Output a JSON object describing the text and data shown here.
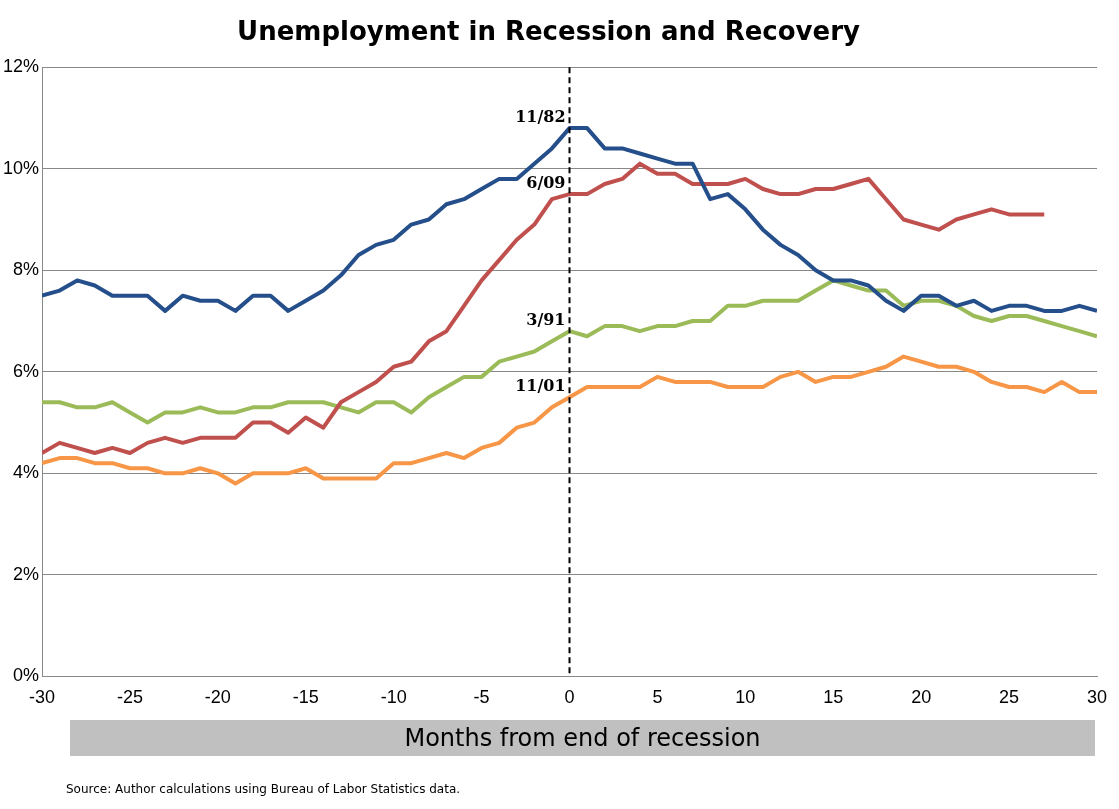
{
  "chart_data": {
    "type": "line",
    "title": "Unemployment in Recession and Recovery",
    "xlabel": "Months from end of recession",
    "x": [
      -30,
      -29,
      -28,
      -27,
      -26,
      -25,
      -24,
      -23,
      -22,
      -21,
      -20,
      -19,
      -18,
      -17,
      -16,
      -15,
      -14,
      -13,
      -12,
      -11,
      -10,
      -9,
      -8,
      -7,
      -6,
      -5,
      -4,
      -3,
      -2,
      -1,
      0,
      1,
      2,
      3,
      4,
      5,
      6,
      7,
      8,
      9,
      10,
      11,
      12,
      13,
      14,
      15,
      16,
      17,
      18,
      19,
      20,
      21,
      22,
      23,
      24,
      25,
      26,
      27,
      28,
      29,
      30
    ],
    "series": [
      {
        "name": "11/82",
        "color": "#254f8a",
        "values": [
          7.5,
          7.6,
          7.8,
          7.7,
          7.5,
          7.5,
          7.5,
          7.2,
          7.5,
          7.4,
          7.4,
          7.2,
          7.5,
          7.5,
          7.2,
          7.4,
          7.6,
          7.9,
          8.3,
          8.5,
          8.6,
          8.9,
          9.0,
          9.3,
          9.4,
          9.6,
          9.8,
          9.8,
          10.1,
          10.4,
          10.8,
          10.8,
          10.4,
          10.4,
          10.3,
          10.2,
          10.1,
          10.1,
          9.4,
          9.5,
          9.2,
          8.8,
          8.5,
          8.3,
          8.0,
          7.8,
          7.8,
          7.7,
          7.4,
          7.2,
          7.5,
          7.5,
          7.3,
          7.4,
          7.2,
          7.3,
          7.3,
          7.2,
          7.2,
          7.3,
          7.2
        ]
      },
      {
        "name": "6/09",
        "color": "#c0504d",
        "values": [
          4.4,
          4.6,
          4.5,
          4.4,
          4.5,
          4.4,
          4.6,
          4.7,
          4.6,
          4.7,
          4.7,
          4.7,
          5.0,
          5.0,
          4.8,
          5.1,
          4.9,
          5.4,
          5.6,
          5.8,
          6.1,
          6.2,
          6.6,
          6.8,
          7.3,
          7.8,
          8.2,
          8.6,
          8.9,
          9.4,
          9.5,
          9.5,
          9.7,
          9.8,
          10.1,
          9.9,
          9.9,
          9.7,
          9.7,
          9.7,
          9.8,
          9.6,
          9.5,
          9.5,
          9.6,
          9.6,
          9.7,
          9.8,
          9.4,
          9.0,
          8.9,
          8.8,
          9.0,
          9.1,
          9.2,
          9.1,
          9.1,
          9.1,
          null,
          null,
          null
        ]
      },
      {
        "name": "3/91",
        "color": "#9bbb59",
        "values": [
          5.4,
          5.4,
          5.3,
          5.3,
          5.4,
          5.2,
          5.0,
          5.2,
          5.2,
          5.3,
          5.2,
          5.2,
          5.3,
          5.3,
          5.4,
          5.4,
          5.4,
          5.3,
          5.2,
          5.4,
          5.4,
          5.2,
          5.5,
          5.7,
          5.9,
          5.9,
          6.2,
          6.3,
          6.4,
          6.6,
          6.8,
          6.7,
          6.9,
          6.9,
          6.8,
          6.9,
          6.9,
          7.0,
          7.0,
          7.3,
          7.3,
          7.4,
          7.4,
          7.4,
          7.6,
          7.8,
          7.7,
          7.6,
          7.6,
          7.3,
          7.4,
          7.4,
          7.3,
          7.1,
          7.0,
          7.1,
          7.1,
          7.0,
          6.9,
          6.8,
          6.7
        ]
      },
      {
        "name": "11/01",
        "color": "#f79646",
        "values": [
          4.2,
          4.3,
          4.3,
          4.2,
          4.2,
          4.1,
          4.1,
          4.0,
          4.0,
          4.1,
          4.0,
          3.8,
          4.0,
          4.0,
          4.0,
          4.1,
          3.9,
          3.9,
          3.9,
          3.9,
          4.2,
          4.2,
          4.3,
          4.4,
          4.3,
          4.5,
          4.6,
          4.9,
          5.0,
          5.3,
          5.5,
          5.7,
          5.7,
          5.7,
          5.7,
          5.9,
          5.8,
          5.8,
          5.8,
          5.7,
          5.7,
          5.7,
          5.9,
          6.0,
          5.8,
          5.9,
          5.9,
          6.0,
          6.1,
          6.3,
          6.2,
          6.1,
          6.1,
          6.0,
          5.8,
          5.7,
          5.7,
          5.6,
          5.8,
          5.6,
          5.6
        ]
      }
    ],
    "xlim": [
      -30,
      30
    ],
    "xticks": [
      -30,
      -25,
      -20,
      -15,
      -10,
      -5,
      0,
      5,
      10,
      15,
      20,
      25,
      30
    ],
    "ylim": [
      0,
      12
    ],
    "yticks": [
      {
        "value": 0,
        "label": "0%"
      },
      {
        "value": 2,
        "label": "2%"
      },
      {
        "value": 4,
        "label": "4%"
      },
      {
        "value": 6,
        "label": "6%"
      },
      {
        "value": 8,
        "label": "8%"
      },
      {
        "value": 10,
        "label": "10%"
      },
      {
        "value": 12,
        "label": "12%"
      }
    ],
    "grid": "y",
    "legend": false,
    "ref_lines": [
      {
        "axis": "x",
        "value": 0,
        "color": "#000000",
        "line_style": "dashed"
      }
    ],
    "annotations": [
      "Source: Author calculations using Bureau of Labor Statistics data."
    ]
  }
}
